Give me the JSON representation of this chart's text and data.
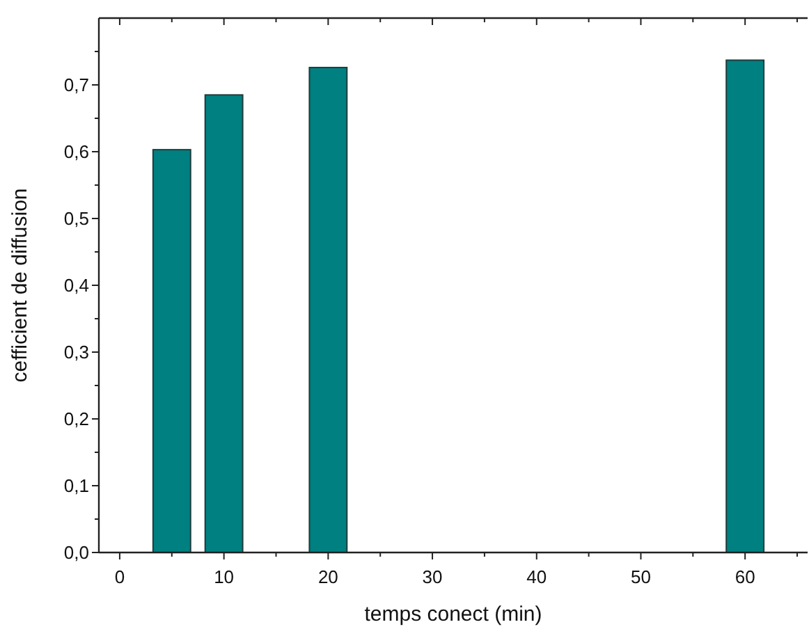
{
  "chart_data": {
    "type": "bar",
    "xlabel": "temps conect (min)",
    "ylabel": "cefficient de diffusion",
    "x": [
      5,
      10,
      20,
      60
    ],
    "values": [
      0.603,
      0.685,
      0.726,
      0.737
    ],
    "color": "#008080",
    "xlim": [
      -2,
      66
    ],
    "ylim": [
      0,
      0.8
    ],
    "xticks": [
      0,
      {
        "value": 5,
        "label": null
      },
      10,
      {
        "value": 15,
        "label": null
      },
      20,
      {
        "value": 25,
        "label": null
      },
      30,
      {
        "value": 35,
        "label": null
      },
      40,
      {
        "value": 45,
        "label": null
      },
      50,
      {
        "value": 55,
        "label": null
      },
      60,
      {
        "value": 65,
        "label": null
      }
    ],
    "yticks": [
      {
        "value": 0,
        "label": "0,0"
      },
      {
        "value": 0.05,
        "label": null
      },
      {
        "value": 0.1,
        "label": "0,1"
      },
      {
        "value": 0.15,
        "label": null
      },
      {
        "value": 0.2,
        "label": "0,2"
      },
      {
        "value": 0.25,
        "label": null
      },
      {
        "value": 0.3,
        "label": "0,3"
      },
      {
        "value": 0.35,
        "label": null
      },
      {
        "value": 0.4,
        "label": "0,4"
      },
      {
        "value": 0.45,
        "label": null
      },
      {
        "value": 0.5,
        "label": "0,5"
      },
      {
        "value": 0.55,
        "label": null
      },
      {
        "value": 0.6,
        "label": "0,6"
      },
      {
        "value": 0.65,
        "label": null
      },
      {
        "value": 0.7,
        "label": "0,7"
      },
      {
        "value": 0.75,
        "label": null
      }
    ],
    "grid": false
  }
}
